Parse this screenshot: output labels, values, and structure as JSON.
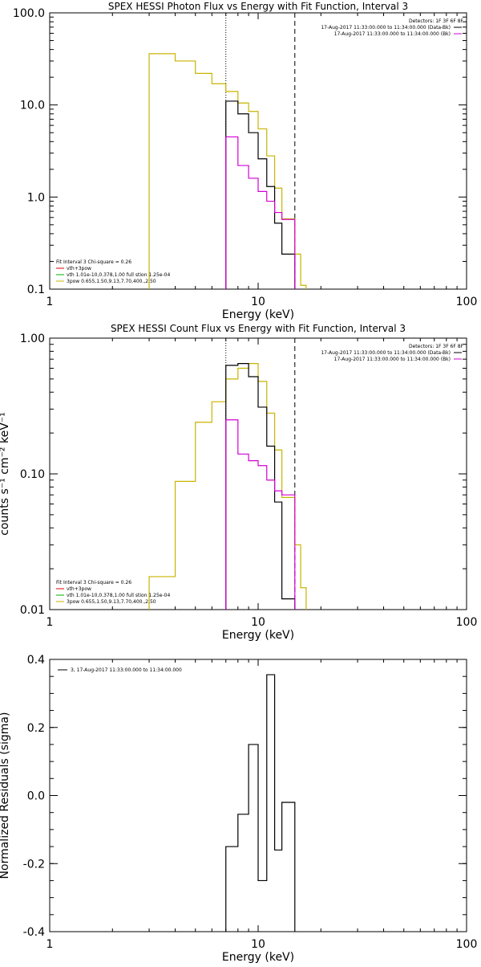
{
  "colors": {
    "black": "#000000",
    "yellow": "#c8b400",
    "magenta": "#d400d4",
    "red": "#e00000",
    "green": "#00b000",
    "background": "#ffffff"
  },
  "chart_data": [
    {
      "type": "line",
      "title": "SPEX HESSI Photon Flux vs Energy with Fit Function, Interval 3",
      "xlabel": "Energy (keV)",
      "ylabel": "",
      "xscale": "log",
      "yscale": "log",
      "xlim": [
        1,
        100
      ],
      "ylim": [
        0.1,
        100
      ],
      "xticks": [
        "1",
        "10",
        "100"
      ],
      "yticks": [
        "0.1",
        "1.0",
        "10.0",
        "100.0"
      ],
      "legend_header": "Detectors: 1F 3F 6F 8F",
      "legend": [
        "17-Aug-2017 11:33:00.000 to 11:34:00.000 (Data-Bk)",
        "17-Aug-2017 11:33:00.000 to 11:34:00.000 (Bk)"
      ],
      "fit_info": [
        "Fit Interval 3   Chi-square = 0.26",
        "vth+3pow",
        "vth 1.01e-10,0.378,1.00  full stion 1.25e-04",
        "3pow 0.655,1.50,9.13,7.70,400.,2.50"
      ],
      "vlines": [
        {
          "x": 7.0,
          "style": "dotted"
        },
        {
          "x": 15.0,
          "style": "dashed"
        }
      ],
      "bin_edges": [
        3,
        4,
        5,
        6,
        7,
        8,
        9,
        10,
        11,
        12,
        13,
        15,
        16,
        17
      ],
      "series": [
        {
          "name": "17-Aug-2017 11:33:00.000 to 11:34:00.000 (Data-Bk)",
          "color": "black",
          "x_start": 7,
          "x_end": 15,
          "values": [
            null,
            null,
            null,
            null,
            11.0,
            8.0,
            5.0,
            2.6,
            1.3,
            0.52,
            0.24,
            null,
            null
          ]
        },
        {
          "name": "17-Aug-2017 11:33:00.000 to 11:34:00.000 (Bk)",
          "color": "magenta",
          "x_start": 7,
          "x_end": 15,
          "values": [
            null,
            null,
            null,
            null,
            4.5,
            2.2,
            1.6,
            1.15,
            0.9,
            0.68,
            0.57,
            null,
            null
          ]
        },
        {
          "color": "yellow",
          "x_start": 3,
          "x_end": 17,
          "values": [
            36,
            30,
            22,
            17,
            14,
            10.5,
            8.5,
            5.5,
            2.8,
            1.25,
            0.58,
            0.24,
            0.11
          ]
        }
      ]
    },
    {
      "type": "line",
      "title": "SPEX HESSI Count Flux vs Energy with Fit Function, Interval 3",
      "xlabel": "Energy (keV)",
      "ylabel": "counts s⁻¹ cm⁻² keV⁻¹",
      "xscale": "log",
      "yscale": "log",
      "xlim": [
        1,
        100
      ],
      "ylim": [
        0.01,
        1.0
      ],
      "xticks": [
        "1",
        "10",
        "100"
      ],
      "yticks": [
        "0.01",
        "0.10",
        "1.00"
      ],
      "legend_header": "Detectors: 1F 3F 6F 8F",
      "legend": [
        "17-Aug-2017 11:33:00.000 to 11:34:00.000 (Data-Bk)",
        "17-Aug-2017 11:33:00.000 to 11:34:00.000 (Bk)"
      ],
      "fit_info": [
        "Fit Interval 3   Chi-square = 0.26",
        "vth+3pow",
        "vth 1.01e-10,0.378,1.00  full stion 1.25e-04",
        "3pow 0.655,1.50,9.13,7.70,400.,2.50"
      ],
      "vlines": [
        {
          "x": 7.0,
          "style": "dotted"
        },
        {
          "x": 15.0,
          "style": "dashed"
        }
      ],
      "bin_edges": [
        3,
        4,
        5,
        6,
        7,
        8,
        9,
        10,
        11,
        12,
        13,
        15,
        16,
        17
      ],
      "series": [
        {
          "name": "17-Aug-2017 11:33:00.000 to 11:34:00.000 (Data-Bk)",
          "color": "black",
          "x_start": 7,
          "x_end": 15,
          "values": [
            null,
            null,
            null,
            null,
            0.63,
            0.65,
            0.52,
            0.31,
            0.16,
            0.062,
            0.012,
            null,
            null
          ]
        },
        {
          "name": "17-Aug-2017 11:33:00.000 to 11:34:00.000 (Bk)",
          "color": "magenta",
          "x_start": 7,
          "x_end": 15,
          "values": [
            null,
            null,
            null,
            null,
            0.25,
            0.14,
            0.125,
            0.115,
            0.09,
            0.075,
            0.07,
            null,
            null
          ]
        },
        {
          "color": "yellow",
          "x_start": 3,
          "x_end": 17,
          "values": [
            0.0175,
            0.088,
            0.24,
            0.34,
            0.5,
            0.6,
            0.65,
            0.48,
            0.28,
            0.15,
            0.067,
            0.03,
            0.0145
          ]
        }
      ]
    },
    {
      "type": "line",
      "title": "",
      "xlabel": "Energy (keV)",
      "ylabel": "Normalized Residuals (sigma)",
      "xscale": "log",
      "yscale": "linear",
      "xlim": [
        1,
        100
      ],
      "ylim": [
        -0.4,
        0.4
      ],
      "xticks": [
        "1",
        "10",
        "100"
      ],
      "yticks": [
        "-0.4",
        "-0.2",
        "0.0",
        "0.2",
        "0.4"
      ],
      "legend": [
        "3, 17-Aug-2017 11:33:00.000 to 11:34:00.000"
      ],
      "bin_edges": [
        7,
        8,
        9,
        10,
        11,
        12,
        13,
        15
      ],
      "series": [
        {
          "name": "3, 17-Aug-2017 11:33:00.000 to 11:34:00.000",
          "color": "black",
          "values": [
            -0.15,
            -0.055,
            0.15,
            -0.25,
            0.355,
            -0.16,
            -0.02
          ]
        }
      ]
    }
  ]
}
